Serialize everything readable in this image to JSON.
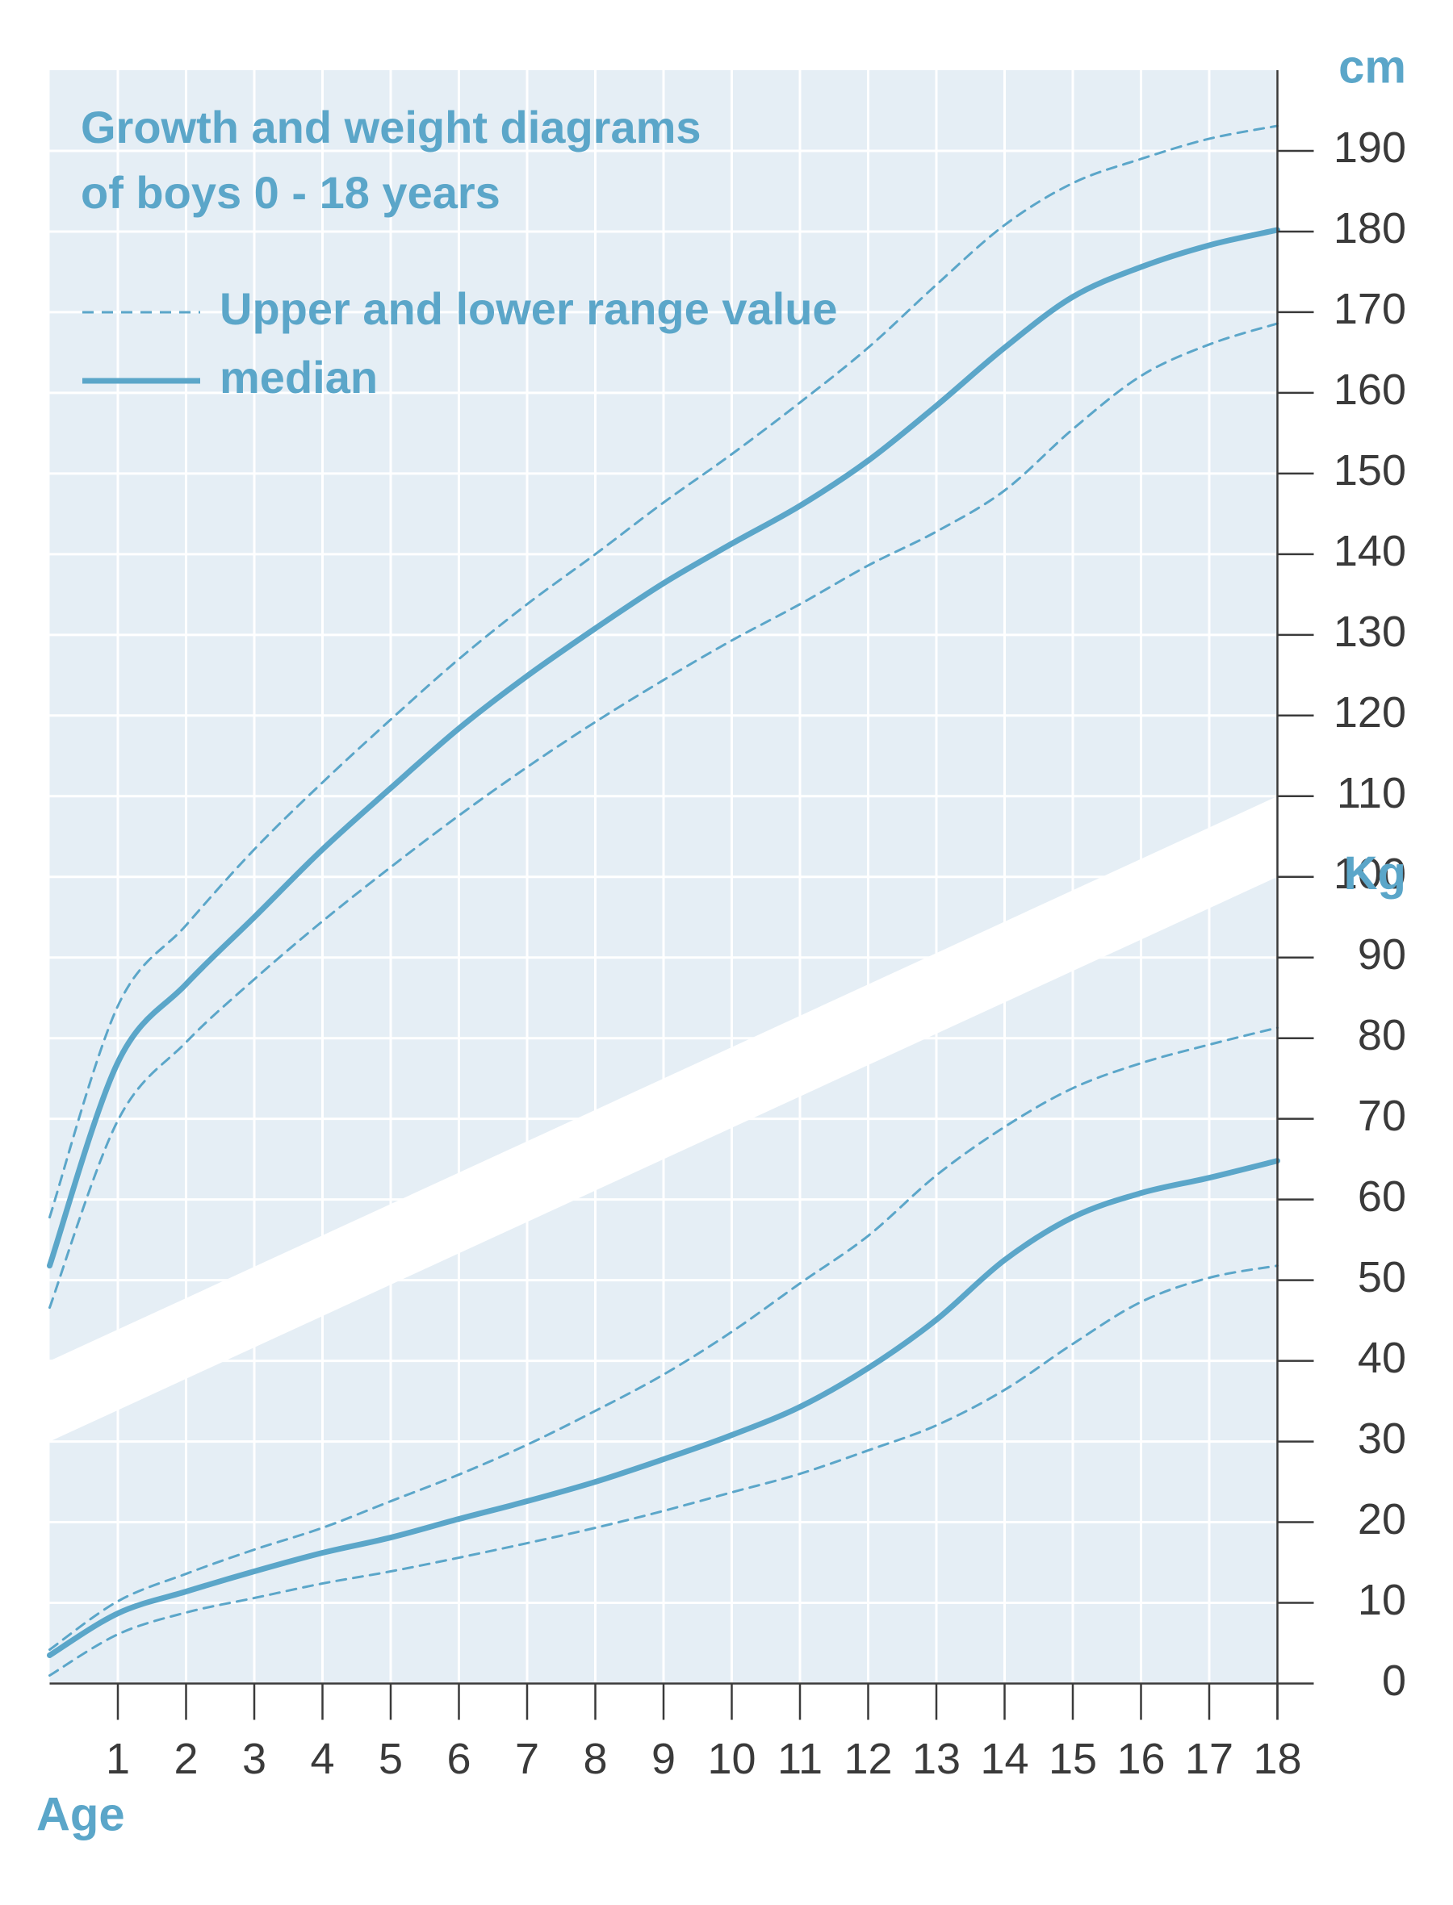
{
  "chart_data": {
    "type": "line",
    "title": [
      "Growth and weight diagrams",
      "of boys 0 - 18 years"
    ],
    "legend": {
      "dashed": "Upper and lower range value",
      "solid": "median"
    },
    "x_label": "Age",
    "y_label": "Kg",
    "y2_label": "cm",
    "color": "#5ba6c9",
    "x": [
      0,
      1,
      2,
      3,
      4,
      5,
      6,
      7,
      8,
      9,
      10,
      11,
      12,
      13,
      14,
      15,
      16,
      17,
      18
    ],
    "xlim": [
      0,
      18
    ],
    "xticks": [
      1,
      2,
      3,
      4,
      5,
      6,
      7,
      8,
      9,
      10,
      11,
      12,
      13,
      14,
      15,
      16,
      17,
      18
    ],
    "ylim": [
      0,
      200
    ],
    "yticks": [
      0,
      10,
      20,
      30,
      40,
      50,
      60,
      70,
      80,
      90,
      100
    ],
    "y2lim": [
      0,
      200
    ],
    "y2ticks": [
      110,
      120,
      130,
      140,
      150,
      160,
      170,
      180,
      190
    ],
    "grid": true,
    "break_band": {
      "start": [
        30,
        40
      ],
      "end": [
        100,
        110
      ]
    },
    "series": [
      {
        "style": "dashed",
        "axis": "y2",
        "values": [
          57.8,
          84,
          94,
          103.4,
          111.7,
          119.5,
          127,
          133.8,
          140,
          146.4,
          152.4,
          158.8,
          165.6,
          173.4,
          180.8,
          186,
          189,
          191.5,
          193.1
        ]
      },
      {
        "style": "solid",
        "axis": "y2",
        "values": [
          51.8,
          77,
          86.7,
          95,
          103.4,
          111,
          118.4,
          124.9,
          130.8,
          136.4,
          141.3,
          146,
          151.6,
          158.4,
          165.6,
          171.9,
          175.6,
          178.3,
          180.2
        ]
      },
      {
        "style": "dashed",
        "axis": "y2",
        "values": [
          46.6,
          69.8,
          79.5,
          87.3,
          94.5,
          101.2,
          107.6,
          113.6,
          119.2,
          124.4,
          129.3,
          133.8,
          138.6,
          142.8,
          147.9,
          155.5,
          162.1,
          166,
          168.6
        ]
      },
      {
        "style": "dashed",
        "axis": "y",
        "values": [
          4.2,
          10.2,
          13.6,
          16.6,
          19.3,
          22.6,
          25.9,
          29.6,
          33.8,
          38.3,
          43.6,
          49.6,
          55.5,
          63,
          69,
          73.8,
          76.9,
          79.2,
          81.3
        ]
      },
      {
        "style": "solid",
        "axis": "y",
        "values": [
          3.5,
          8.7,
          11.4,
          13.9,
          16.2,
          18.1,
          20.4,
          22.6,
          25,
          27.8,
          30.8,
          34.3,
          39.1,
          45.1,
          52.5,
          57.8,
          60.8,
          62.7,
          64.8
        ]
      },
      {
        "style": "dashed",
        "axis": "y",
        "values": [
          1,
          6.1,
          8.8,
          10.6,
          12.4,
          13.9,
          15.6,
          17.4,
          19.3,
          21.4,
          23.7,
          26,
          28.9,
          32,
          36.4,
          42.1,
          47.3,
          50.3,
          51.8
        ]
      }
    ]
  }
}
